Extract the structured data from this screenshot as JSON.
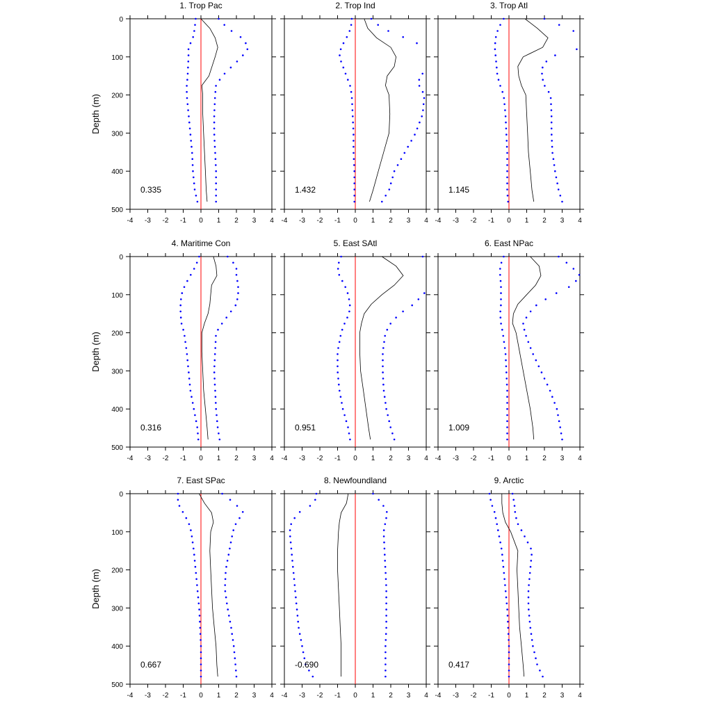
{
  "chart_data": [
    {
      "type": "line",
      "title": "1. Trop Pac",
      "xlabel": "",
      "ylabel": "Depth (m)",
      "xlim": [
        -4,
        4
      ],
      "ylim": [
        500,
        0
      ],
      "annotation": "0.335",
      "depth": [
        0,
        25,
        50,
        75,
        100,
        150,
        175,
        200,
        250,
        300,
        350,
        400,
        450,
        480
      ],
      "series": [
        {
          "style": "solid-black",
          "values": [
            0.0,
            0.5,
            0.8,
            0.95,
            0.8,
            0.45,
            0.05,
            0.1,
            0.1,
            0.15,
            0.2,
            0.25,
            0.3,
            0.35
          ]
        },
        {
          "style": "dotted-blue-lower",
          "values": [
            -0.3,
            -0.35,
            -0.45,
            -0.7,
            -0.7,
            -0.75,
            -0.8,
            -0.8,
            -0.7,
            -0.6,
            -0.5,
            -0.45,
            -0.35,
            -0.2
          ]
        },
        {
          "style": "dotted-blue-upper",
          "values": [
            1.0,
            1.5,
            2.3,
            2.7,
            2.3,
            1.2,
            0.85,
            0.8,
            0.75,
            0.75,
            0.8,
            0.85,
            0.85,
            0.85
          ]
        }
      ],
      "reference_line_x": 0
    },
    {
      "type": "line",
      "title": "2. Trop Ind",
      "xlabel": "",
      "ylabel": "",
      "xlim": [
        -4,
        4
      ],
      "ylim": [
        500,
        0
      ],
      "annotation": "1.432",
      "depth": [
        0,
        25,
        50,
        75,
        100,
        125,
        150,
        175,
        200,
        250,
        300,
        350,
        400,
        450,
        480
      ],
      "series": [
        {
          "style": "solid-black",
          "values": [
            0.5,
            0.7,
            1.2,
            2.0,
            2.3,
            2.2,
            1.8,
            1.7,
            1.9,
            1.95,
            1.9,
            1.6,
            1.3,
            1.0,
            0.8
          ]
        },
        {
          "style": "dotted-blue-lower",
          "values": [
            -0.2,
            -0.25,
            -0.5,
            -0.8,
            -0.9,
            -0.7,
            -0.5,
            -0.3,
            -0.2,
            -0.15,
            -0.1,
            -0.1,
            -0.05,
            -0.05,
            -0.05
          ]
        },
        {
          "style": "dotted-blue-upper",
          "values": [
            0.9,
            1.5,
            2.8,
            4.0,
            4.5,
            4.4,
            3.6,
            3.6,
            3.9,
            3.8,
            3.4,
            2.8,
            2.2,
            1.9,
            1.5
          ]
        }
      ],
      "reference_line_x": 0
    },
    {
      "type": "line",
      "title": "3. Trop Atl",
      "xlabel": "",
      "ylabel": "",
      "xlim": [
        -4,
        4
      ],
      "ylim": [
        500,
        0
      ],
      "annotation": "1.145",
      "depth": [
        0,
        25,
        50,
        75,
        100,
        125,
        150,
        175,
        200,
        250,
        300,
        350,
        400,
        450,
        480
      ],
      "series": [
        {
          "style": "solid-black",
          "values": [
            0.9,
            1.6,
            2.2,
            1.9,
            0.8,
            0.5,
            0.55,
            0.7,
            0.95,
            1.0,
            1.05,
            1.1,
            1.2,
            1.3,
            1.4
          ]
        },
        {
          "style": "dotted-blue-lower",
          "values": [
            -0.3,
            -0.6,
            -0.75,
            -0.8,
            -0.75,
            -0.7,
            -0.65,
            -0.5,
            -0.3,
            -0.2,
            -0.15,
            -0.1,
            -0.1,
            -0.1,
            -0.05
          ]
        },
        {
          "style": "dotted-blue-upper",
          "values": [
            2.0,
            3.3,
            4.5,
            4.2,
            2.3,
            1.9,
            1.85,
            2.0,
            2.35,
            2.4,
            2.4,
            2.45,
            2.6,
            2.8,
            3.0
          ]
        }
      ],
      "reference_line_x": 0
    },
    {
      "type": "line",
      "title": "4. Maritime Con",
      "xlabel": "",
      "ylabel": "Depth (m)",
      "xlim": [
        -4,
        4
      ],
      "ylim": [
        500,
        0
      ],
      "annotation": "0.316",
      "depth": [
        0,
        25,
        50,
        75,
        100,
        125,
        150,
        175,
        200,
        250,
        300,
        350,
        400,
        450,
        480
      ],
      "series": [
        {
          "style": "solid-black",
          "values": [
            0.7,
            0.85,
            0.9,
            0.6,
            0.55,
            0.5,
            0.4,
            0.2,
            0.05,
            0.05,
            0.1,
            0.15,
            0.25,
            0.35,
            0.4
          ]
        },
        {
          "style": "dotted-blue-lower",
          "values": [
            -0.1,
            -0.3,
            -0.6,
            -0.9,
            -1.1,
            -1.15,
            -1.15,
            -1.1,
            -0.95,
            -0.8,
            -0.7,
            -0.6,
            -0.4,
            -0.2,
            -0.15
          ]
        },
        {
          "style": "dotted-blue-upper",
          "values": [
            1.5,
            2.0,
            2.0,
            2.1,
            2.1,
            2.0,
            1.6,
            1.2,
            0.85,
            0.8,
            0.75,
            0.8,
            0.85,
            0.95,
            1.05
          ]
        }
      ],
      "reference_line_x": 0
    },
    {
      "type": "line",
      "title": "5. East SAtl",
      "xlabel": "",
      "ylabel": "",
      "xlim": [
        -4,
        4
      ],
      "ylim": [
        500,
        0
      ],
      "annotation": "0.951",
      "depth": [
        0,
        25,
        50,
        75,
        100,
        125,
        150,
        175,
        200,
        250,
        300,
        350,
        400,
        450,
        480
      ],
      "series": [
        {
          "style": "solid-black",
          "values": [
            1.5,
            2.3,
            2.7,
            2.2,
            1.5,
            0.9,
            0.5,
            0.35,
            0.25,
            0.25,
            0.3,
            0.45,
            0.6,
            0.75,
            0.85
          ]
        },
        {
          "style": "dotted-blue-lower",
          "values": [
            -0.8,
            -1.0,
            -0.9,
            -0.6,
            -0.4,
            -0.3,
            -0.35,
            -0.6,
            -0.8,
            -1.0,
            -1.0,
            -0.9,
            -0.7,
            -0.4,
            -0.3
          ]
        },
        {
          "style": "dotted-blue-upper",
          "values": [
            3.8,
            4.5,
            4.6,
            4.4,
            3.8,
            3.3,
            2.5,
            2.0,
            1.7,
            1.55,
            1.55,
            1.6,
            1.75,
            2.0,
            2.2
          ]
        }
      ],
      "reference_line_x": 0
    },
    {
      "type": "line",
      "title": "6. East NPac",
      "xlabel": "",
      "ylabel": "",
      "xlim": [
        -4,
        4
      ],
      "ylim": [
        500,
        0
      ],
      "annotation": "1.009",
      "depth": [
        0,
        25,
        50,
        75,
        100,
        125,
        150,
        175,
        200,
        250,
        300,
        350,
        400,
        450,
        480
      ],
      "series": [
        {
          "style": "solid-black",
          "values": [
            1.2,
            1.7,
            1.8,
            1.5,
            1.0,
            0.5,
            0.25,
            0.2,
            0.4,
            0.6,
            0.8,
            1.0,
            1.2,
            1.35,
            1.4
          ]
        },
        {
          "style": "dotted-blue-lower",
          "values": [
            -0.3,
            -0.5,
            -0.5,
            -0.45,
            -0.45,
            -0.45,
            -0.5,
            -0.45,
            -0.35,
            -0.2,
            -0.15,
            -0.1,
            -0.1,
            -0.1,
            -0.1
          ]
        },
        {
          "style": "dotted-blue-upper",
          "values": [
            2.8,
            3.5,
            4.0,
            3.6,
            2.5,
            1.6,
            1.1,
            0.8,
            0.9,
            1.3,
            1.8,
            2.3,
            2.7,
            2.9,
            3.0
          ]
        }
      ],
      "reference_line_x": 0
    },
    {
      "type": "line",
      "title": "7. East SPac",
      "xlabel": "",
      "ylabel": "Depth (m)",
      "xlim": [
        -4,
        4
      ],
      "ylim": [
        500,
        0
      ],
      "annotation": "0.667",
      "depth": [
        0,
        25,
        50,
        75,
        100,
        150,
        200,
        250,
        300,
        350,
        400,
        450,
        480
      ],
      "series": [
        {
          "style": "solid-black",
          "values": [
            -0.1,
            0.2,
            0.6,
            0.7,
            0.55,
            0.5,
            0.55,
            0.6,
            0.65,
            0.75,
            0.85,
            0.9,
            0.95
          ]
        },
        {
          "style": "dotted-blue-lower",
          "values": [
            -1.3,
            -1.3,
            -1.0,
            -0.7,
            -0.55,
            -0.4,
            -0.3,
            -0.2,
            -0.1,
            -0.05,
            0.0,
            0.0,
            0.0
          ]
        },
        {
          "style": "dotted-blue-upper",
          "values": [
            1.2,
            1.9,
            2.4,
            2.0,
            1.8,
            1.6,
            1.4,
            1.35,
            1.5,
            1.7,
            1.85,
            1.95,
            2.0
          ]
        }
      ],
      "reference_line_x": 0
    },
    {
      "type": "line",
      "title": "8. Newfoundland",
      "xlabel": "",
      "ylabel": "",
      "xlim": [
        -4,
        4
      ],
      "ylim": [
        500,
        0
      ],
      "annotation": "-0.690",
      "depth": [
        0,
        25,
        50,
        75,
        100,
        150,
        200,
        250,
        300,
        350,
        400,
        450,
        480
      ],
      "series": [
        {
          "style": "solid-black",
          "values": [
            -0.4,
            -0.5,
            -0.8,
            -0.9,
            -0.95,
            -1.0,
            -1.0,
            -0.95,
            -0.9,
            -0.85,
            -0.8,
            -0.8,
            -0.8
          ]
        },
        {
          "style": "dotted-blue-lower",
          "values": [
            -2.2,
            -2.3,
            -3.2,
            -3.6,
            -3.7,
            -3.6,
            -3.5,
            -3.4,
            -3.3,
            -3.2,
            -3.0,
            -2.8,
            -2.4
          ]
        },
        {
          "style": "dotted-blue-upper",
          "values": [
            1.0,
            1.5,
            1.8,
            1.7,
            1.6,
            1.65,
            1.7,
            1.75,
            1.75,
            1.75,
            1.7,
            1.7,
            1.7
          ]
        }
      ],
      "reference_line_x": 0
    },
    {
      "type": "line",
      "title": "9. Arctic",
      "xlabel": "",
      "ylabel": "",
      "xlim": [
        -4,
        4
      ],
      "ylim": [
        500,
        0
      ],
      "annotation": "0.417",
      "depth": [
        0,
        25,
        50,
        75,
        100,
        150,
        200,
        250,
        300,
        350,
        400,
        450,
        480
      ],
      "series": [
        {
          "style": "solid-black",
          "values": [
            -0.4,
            -0.4,
            -0.35,
            -0.2,
            0.1,
            0.5,
            0.45,
            0.5,
            0.55,
            0.6,
            0.7,
            0.8,
            0.85
          ]
        },
        {
          "style": "dotted-blue-lower",
          "values": [
            -1.1,
            -1.0,
            -0.8,
            -0.7,
            -0.6,
            -0.4,
            -0.3,
            -0.2,
            -0.1,
            -0.05,
            0.0,
            0.0,
            0.0
          ]
        },
        {
          "style": "dotted-blue-upper",
          "values": [
            0.2,
            0.3,
            0.35,
            0.45,
            0.75,
            1.3,
            1.2,
            1.1,
            1.1,
            1.2,
            1.35,
            1.6,
            1.9
          ]
        }
      ],
      "reference_line_x": 0
    }
  ],
  "x_ticks": [
    "-4",
    "-3",
    "-2",
    "-1",
    "0",
    "1",
    "2",
    "3",
    "4"
  ],
  "y_ticks": [
    "0",
    "100",
    "200",
    "300",
    "400",
    "500"
  ],
  "colors": {
    "median_line": "#000000",
    "bounds": "#0000ff",
    "zero_line": "#ff0000",
    "axes": "#000000"
  }
}
